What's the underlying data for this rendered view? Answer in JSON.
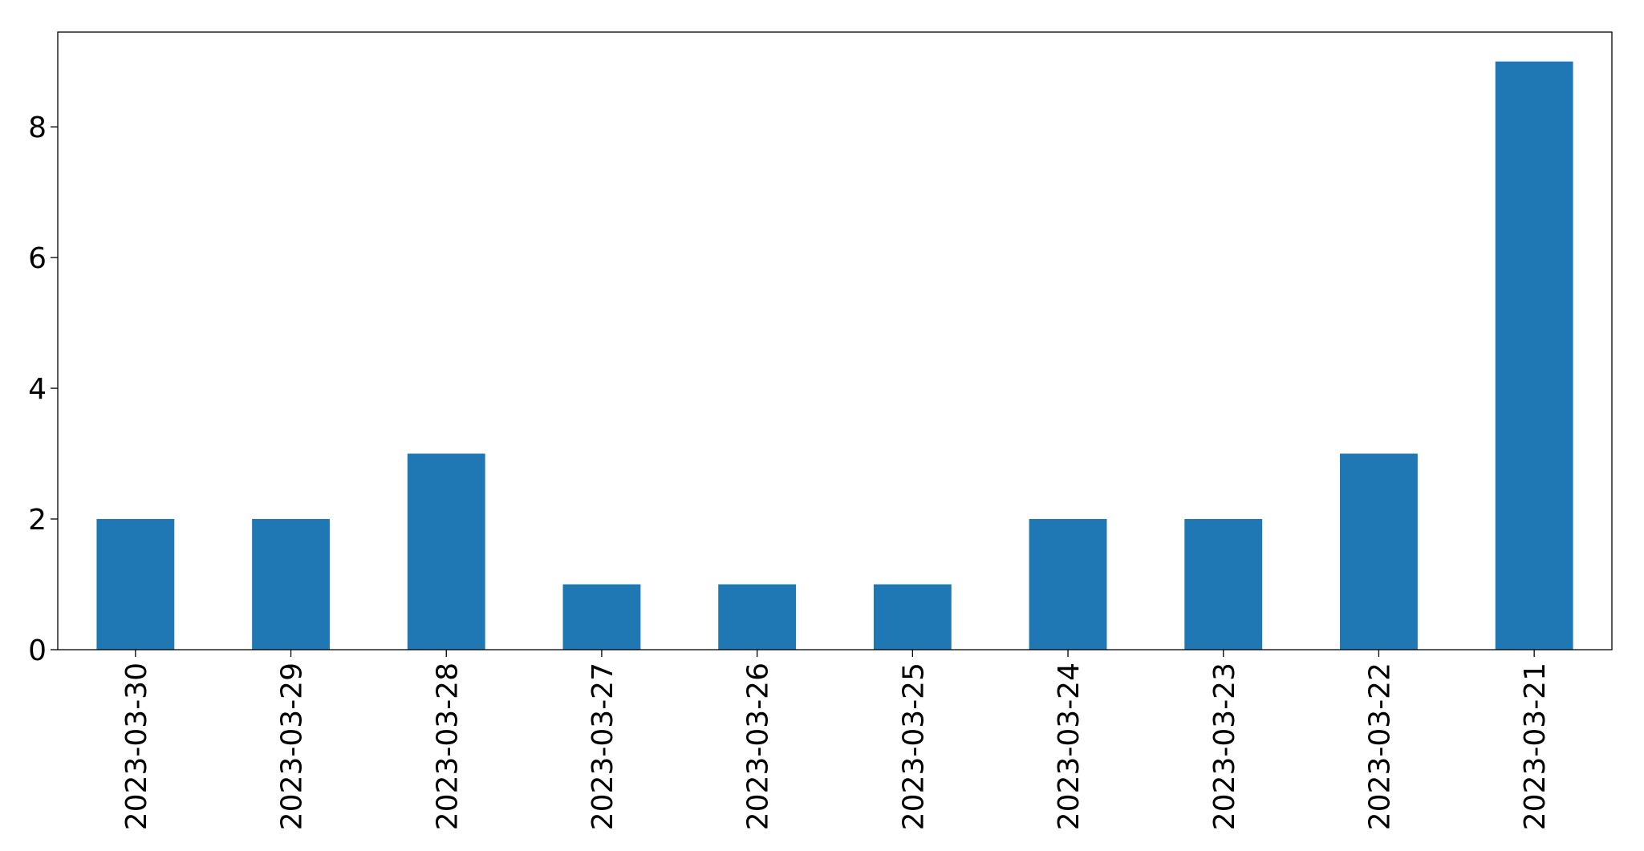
{
  "chart_data": {
    "type": "bar",
    "categories": [
      "2023-03-30",
      "2023-03-29",
      "2023-03-28",
      "2023-03-27",
      "2023-03-26",
      "2023-03-25",
      "2023-03-24",
      "2023-03-23",
      "2023-03-22",
      "2023-03-21"
    ],
    "values": [
      2,
      2,
      3,
      1,
      1,
      1,
      2,
      2,
      3,
      9
    ],
    "color": "#1f77b4",
    "ylim": [
      0,
      9.45
    ],
    "yticks": [
      0,
      2,
      4,
      6,
      8
    ],
    "grid": false
  }
}
